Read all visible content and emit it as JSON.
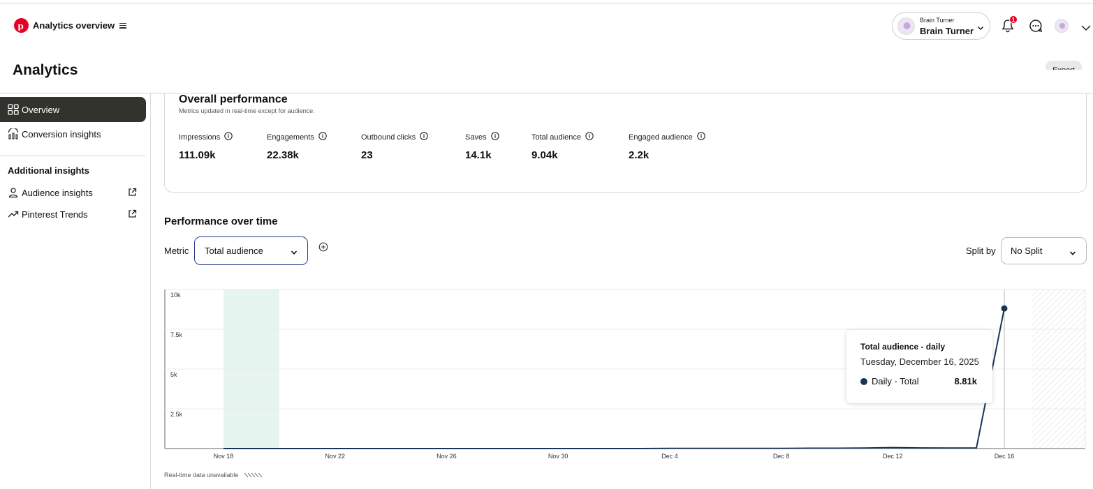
{
  "header": {
    "title": "Analytics overview",
    "account": {
      "small_label": "Brain Turner",
      "name": "Brain Turner"
    },
    "notifications_count": "1",
    "icons": [
      "pinterest-logo",
      "menu-icon",
      "chevron-down-icon",
      "bell-icon",
      "chat-icon",
      "avatar",
      "chevron-down-icon"
    ]
  },
  "page": {
    "title": "Analytics",
    "export_label": "Export"
  },
  "sidebar": {
    "items": [
      {
        "label": "Overview",
        "icon": "grid-icon",
        "active": true
      },
      {
        "label": "Conversion insights",
        "icon": "conversion-icon",
        "active": false
      }
    ],
    "additional_heading": "Additional insights",
    "additional_items": [
      {
        "label": "Audience insights",
        "icon": "person-icon"
      },
      {
        "label": "Pinterest Trends",
        "icon": "trend-icon"
      }
    ]
  },
  "overall": {
    "title": "Overall performance",
    "subtitle": "Metrics updated in real-time except for audience.",
    "metrics": [
      {
        "label": "Impressions",
        "value": "111.09k"
      },
      {
        "label": "Engagements",
        "value": "22.38k"
      },
      {
        "label": "Outbound clicks",
        "value": "23"
      },
      {
        "label": "Saves",
        "value": "14.1k"
      },
      {
        "label": "Total audience",
        "value": "9.04k"
      },
      {
        "label": "Engaged audience",
        "value": "2.2k"
      }
    ]
  },
  "performance": {
    "title": "Performance over time",
    "metric_label": "Metric",
    "metric_value": "Total audience",
    "split_label": "Split by",
    "split_value": "No Split",
    "realtime_note": "Real-time data unavailable"
  },
  "tooltip": {
    "title": "Total audience - daily",
    "date": "Tuesday, December 16, 2025",
    "series": "Daily - Total",
    "value": "8.81k"
  },
  "colors": {
    "line": "#1a3554",
    "highlight": "#e6f5ef",
    "active_nav": "#33332d",
    "accent": "#e60023"
  },
  "chart_data": {
    "type": "line",
    "x_tick_labels": [
      "Nov 18",
      "Nov 22",
      "Nov 26",
      "Nov 30",
      "Dec 4",
      "Dec 8",
      "Dec 12",
      "Dec 16"
    ],
    "y_tick_labels": [
      "10k",
      "7.5k",
      "5k",
      "2.5k"
    ],
    "ylim": [
      0,
      10000
    ],
    "xlim": [
      "2025-11-18",
      "2025-12-19"
    ],
    "grid": true,
    "highlight_range": [
      "2025-11-18",
      "2025-11-20"
    ],
    "series": [
      {
        "x": [
          "2025-11-18",
          "2025-11-19",
          "2025-11-20",
          "2025-11-21",
          "2025-11-22",
          "2025-11-23",
          "2025-11-24",
          "2025-11-25",
          "2025-11-26",
          "2025-11-27",
          "2025-11-28",
          "2025-11-29",
          "2025-11-30",
          "2025-12-01",
          "2025-12-02",
          "2025-12-03",
          "2025-12-04",
          "2025-12-05",
          "2025-12-06",
          "2025-12-07",
          "2025-12-08",
          "2025-12-09",
          "2025-12-10",
          "2025-12-11",
          "2025-12-12",
          "2025-12-13",
          "2025-12-14",
          "2025-12-15",
          "2025-12-16"
        ],
        "values": [
          0,
          0,
          0,
          0,
          0,
          0,
          0,
          0,
          0,
          0,
          0,
          0,
          0,
          0,
          0,
          0,
          10,
          10,
          10,
          10,
          10,
          20,
          20,
          30,
          60,
          40,
          30,
          40,
          8810
        ]
      }
    ]
  }
}
